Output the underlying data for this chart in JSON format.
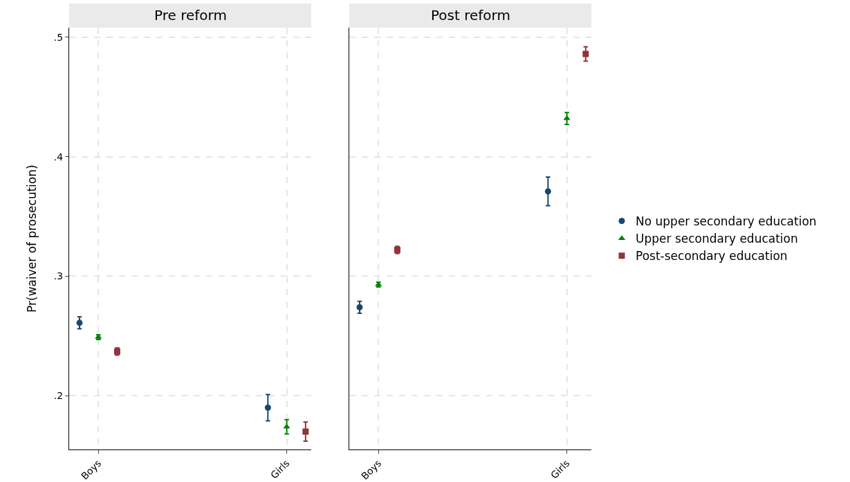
{
  "chart_data": [
    {
      "type": "scatter",
      "title": "Pre reform",
      "ylabel": "Pr(waiver of prosecution)",
      "categories": [
        "Boys",
        "Girls"
      ],
      "ylim": [
        0.155,
        0.508
      ],
      "yticks": [
        {
          "value": 0.2,
          "label": ".2"
        },
        {
          "value": 0.3,
          "label": ".3"
        },
        {
          "value": 0.4,
          "label": ".4"
        },
        {
          "value": 0.5,
          "label": ".5"
        }
      ],
      "grid": true,
      "legend": "right",
      "series": [
        {
          "name": "No upper secondary education",
          "color": "#1a476f",
          "marker": "circle",
          "values": [
            0.261,
            0.19
          ],
          "errors": [
            0.005,
            0.011
          ]
        },
        {
          "name": "Upper secondary education",
          "color": "#008000",
          "marker": "triangle",
          "values": [
            0.249,
            0.174
          ],
          "errors": [
            0.002,
            0.006
          ]
        },
        {
          "name": "Post-secondary education",
          "color": "#90353b",
          "marker": "square",
          "values": [
            0.237,
            0.17
          ],
          "errors": [
            0.003,
            0.008
          ]
        }
      ]
    },
    {
      "type": "scatter",
      "title": "Post reform",
      "categories": [
        "Boys",
        "Girls"
      ],
      "ylim": [
        0.155,
        0.508
      ],
      "yticks": [
        {
          "value": 0.2,
          "label": null
        },
        {
          "value": 0.3,
          "label": null
        },
        {
          "value": 0.4,
          "label": null
        },
        {
          "value": 0.5,
          "label": null
        }
      ],
      "grid": true,
      "tick_labels": "x",
      "series": [
        {
          "color": "#1a476f",
          "marker": "circle",
          "values": [
            0.274,
            0.371
          ],
          "errors": [
            0.005,
            0.012
          ]
        },
        {
          "color": "#008000",
          "marker": "triangle",
          "values": [
            0.293,
            0.432
          ],
          "errors": [
            0.002,
            0.005
          ]
        },
        {
          "color": "#90353b",
          "marker": "square",
          "values": [
            0.322,
            0.486
          ],
          "errors": [
            0.003,
            0.006
          ]
        }
      ]
    }
  ]
}
